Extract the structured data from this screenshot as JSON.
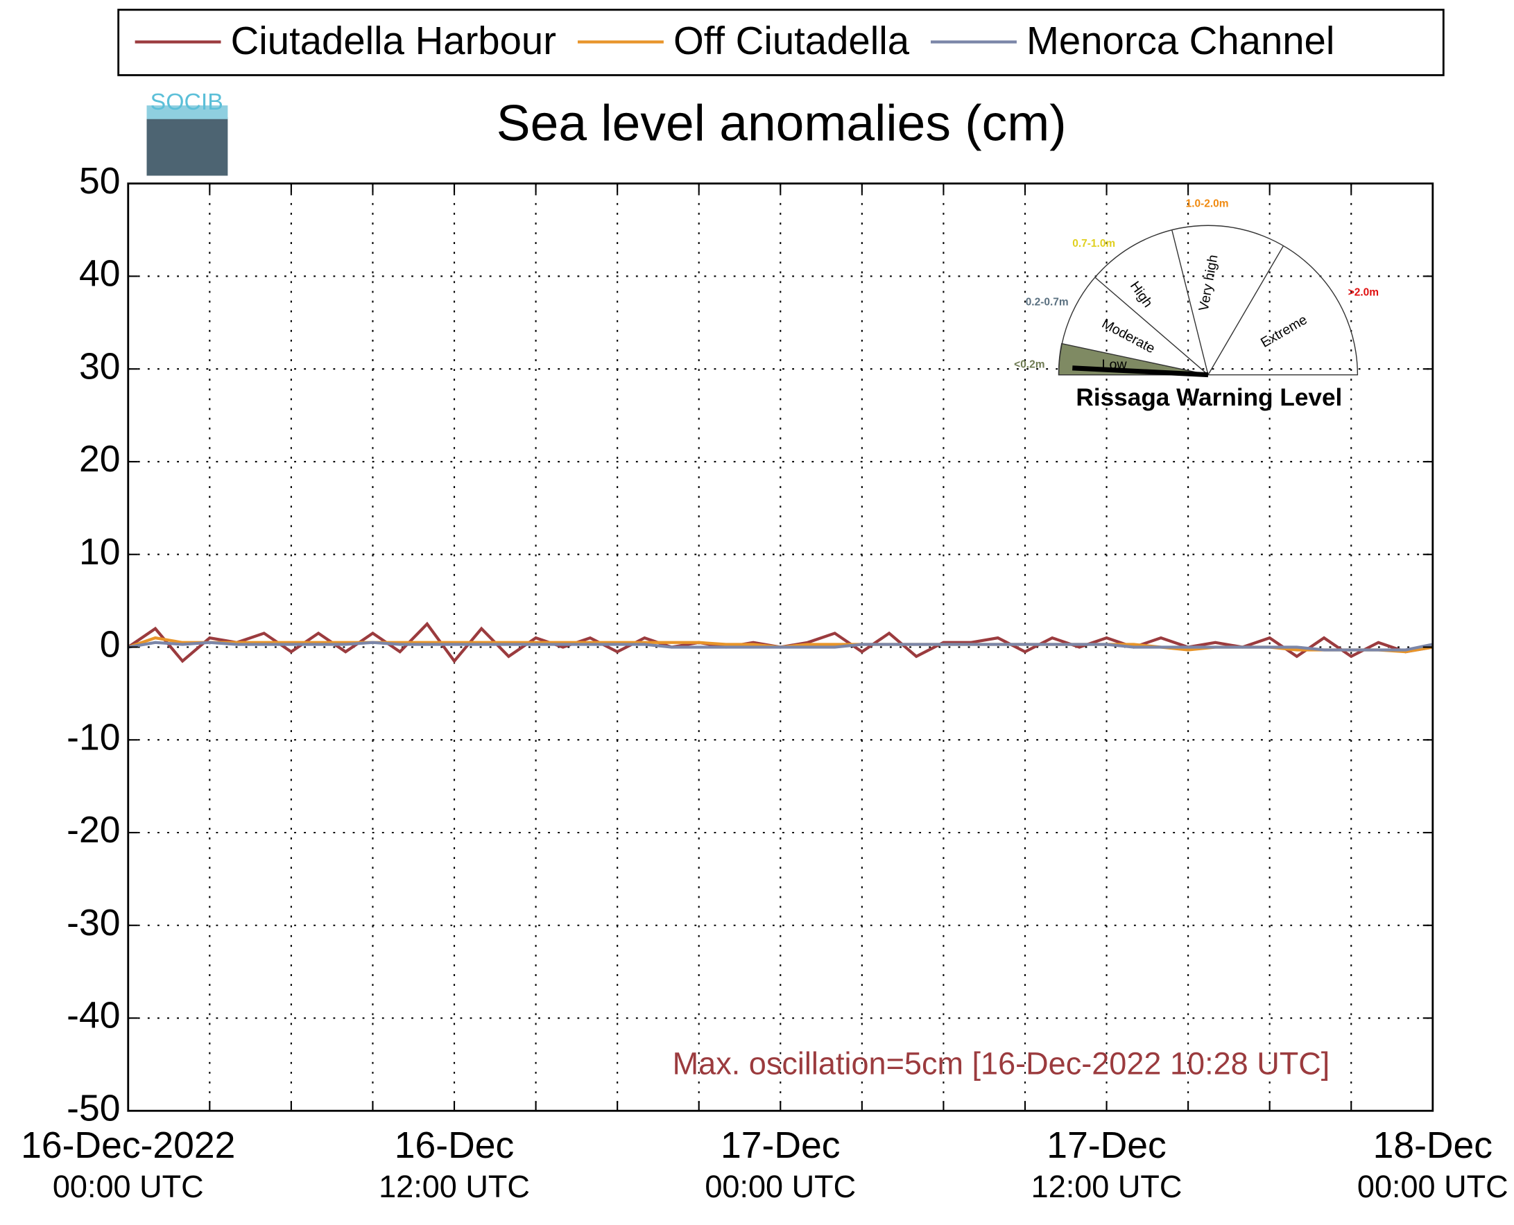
{
  "chart_data": {
    "type": "line",
    "title": "Sea level anomalies (cm)",
    "logo": "SOCIB",
    "annotation": "Max. oscillation=5cm [16-Dec-2022 10:28 UTC]",
    "x": [
      0,
      1,
      2,
      3,
      4,
      5,
      6,
      7,
      8,
      9,
      10,
      11,
      12,
      13,
      14,
      15,
      16,
      17,
      18,
      19,
      20,
      21,
      22,
      23,
      24,
      25,
      26,
      27,
      28,
      29,
      30,
      31,
      32,
      33,
      34,
      35,
      36,
      37,
      38,
      39,
      40,
      41,
      42,
      43,
      44,
      45,
      46,
      47,
      48
    ],
    "series": [
      {
        "name": "Ciutadella Harbour",
        "color": "#9b3b3e",
        "values": [
          0,
          2,
          -1.5,
          1,
          0.5,
          1.5,
          -0.5,
          1.5,
          -0.5,
          1.5,
          -0.5,
          2.5,
          -1.5,
          2,
          -1,
          1,
          0,
          1,
          -0.5,
          1,
          0,
          0.5,
          0,
          0.5,
          0,
          0.5,
          1.5,
          -0.5,
          1.5,
          -1,
          0.5,
          0.5,
          1,
          -0.5,
          1,
          0,
          1,
          0,
          1,
          0,
          0.5,
          0,
          1,
          -1,
          1,
          -1,
          0.5,
          -0.5,
          0
        ]
      },
      {
        "name": "Off Ciutadella",
        "color": "#e8952a",
        "values": [
          0,
          1,
          0.5,
          0.5,
          0.5,
          0.5,
          0.5,
          0.5,
          0.5,
          0.5,
          0.5,
          0.5,
          0.5,
          0.5,
          0.5,
          0.5,
          0.5,
          0.5,
          0.5,
          0.5,
          0.5,
          0.5,
          0.3,
          0.3,
          0,
          0.3,
          0.3,
          0.3,
          0.3,
          0.3,
          0.3,
          0.3,
          0.3,
          0.3,
          0.3,
          0.3,
          0.3,
          0.3,
          0,
          -0.3,
          0,
          0,
          0,
          -0.3,
          -0.3,
          -0.3,
          -0.3,
          -0.5,
          0
        ]
      },
      {
        "name": "Menorca Channel",
        "color": "#7b86a8",
        "values": [
          0,
          0.5,
          0.3,
          0.5,
          0.3,
          0.3,
          0.3,
          0.3,
          0.3,
          0.5,
          0.3,
          0.3,
          0.3,
          0.3,
          0.3,
          0.3,
          0.3,
          0.3,
          0.3,
          0.3,
          0,
          0,
          0,
          0,
          0,
          0,
          0,
          0.3,
          0.3,
          0.3,
          0.3,
          0.3,
          0.3,
          0.3,
          0.3,
          0.3,
          0.3,
          0,
          0,
          0,
          0,
          0,
          0,
          0,
          -0.3,
          -0.3,
          -0.3,
          -0.3,
          0.3
        ]
      }
    ],
    "xlim": [
      0,
      48
    ],
    "xticks": [
      {
        "value": 0,
        "label": [
          "16-Dec-2022",
          "00:00 UTC"
        ]
      },
      {
        "value": 12,
        "label": [
          "16-Dec",
          "12:00 UTC"
        ]
      },
      {
        "value": 24,
        "label": [
          "17-Dec",
          "00:00 UTC"
        ]
      },
      {
        "value": 36,
        "label": [
          "17-Dec",
          "12:00 UTC"
        ]
      },
      {
        "value": 48,
        "label": [
          "18-Dec",
          "00:00 UTC"
        ]
      }
    ],
    "xminor": [
      3,
      6,
      9,
      15,
      18,
      21,
      27,
      30,
      33,
      39,
      42,
      45
    ],
    "ylim": [
      -50,
      50
    ],
    "yticks": [
      -50,
      -40,
      -30,
      -20,
      -10,
      0,
      10,
      20,
      30,
      40,
      50
    ],
    "grid": true,
    "inset": {
      "title": "Rissaga Warning Level",
      "levels": [
        "Low",
        "Moderate",
        "High",
        "Very high",
        "Extreme"
      ],
      "ranges": [
        "<0.2m",
        "0.2-0.7m",
        "0.7-1.0m",
        "1.0-2.0m",
        ">2.0m"
      ]
    }
  }
}
